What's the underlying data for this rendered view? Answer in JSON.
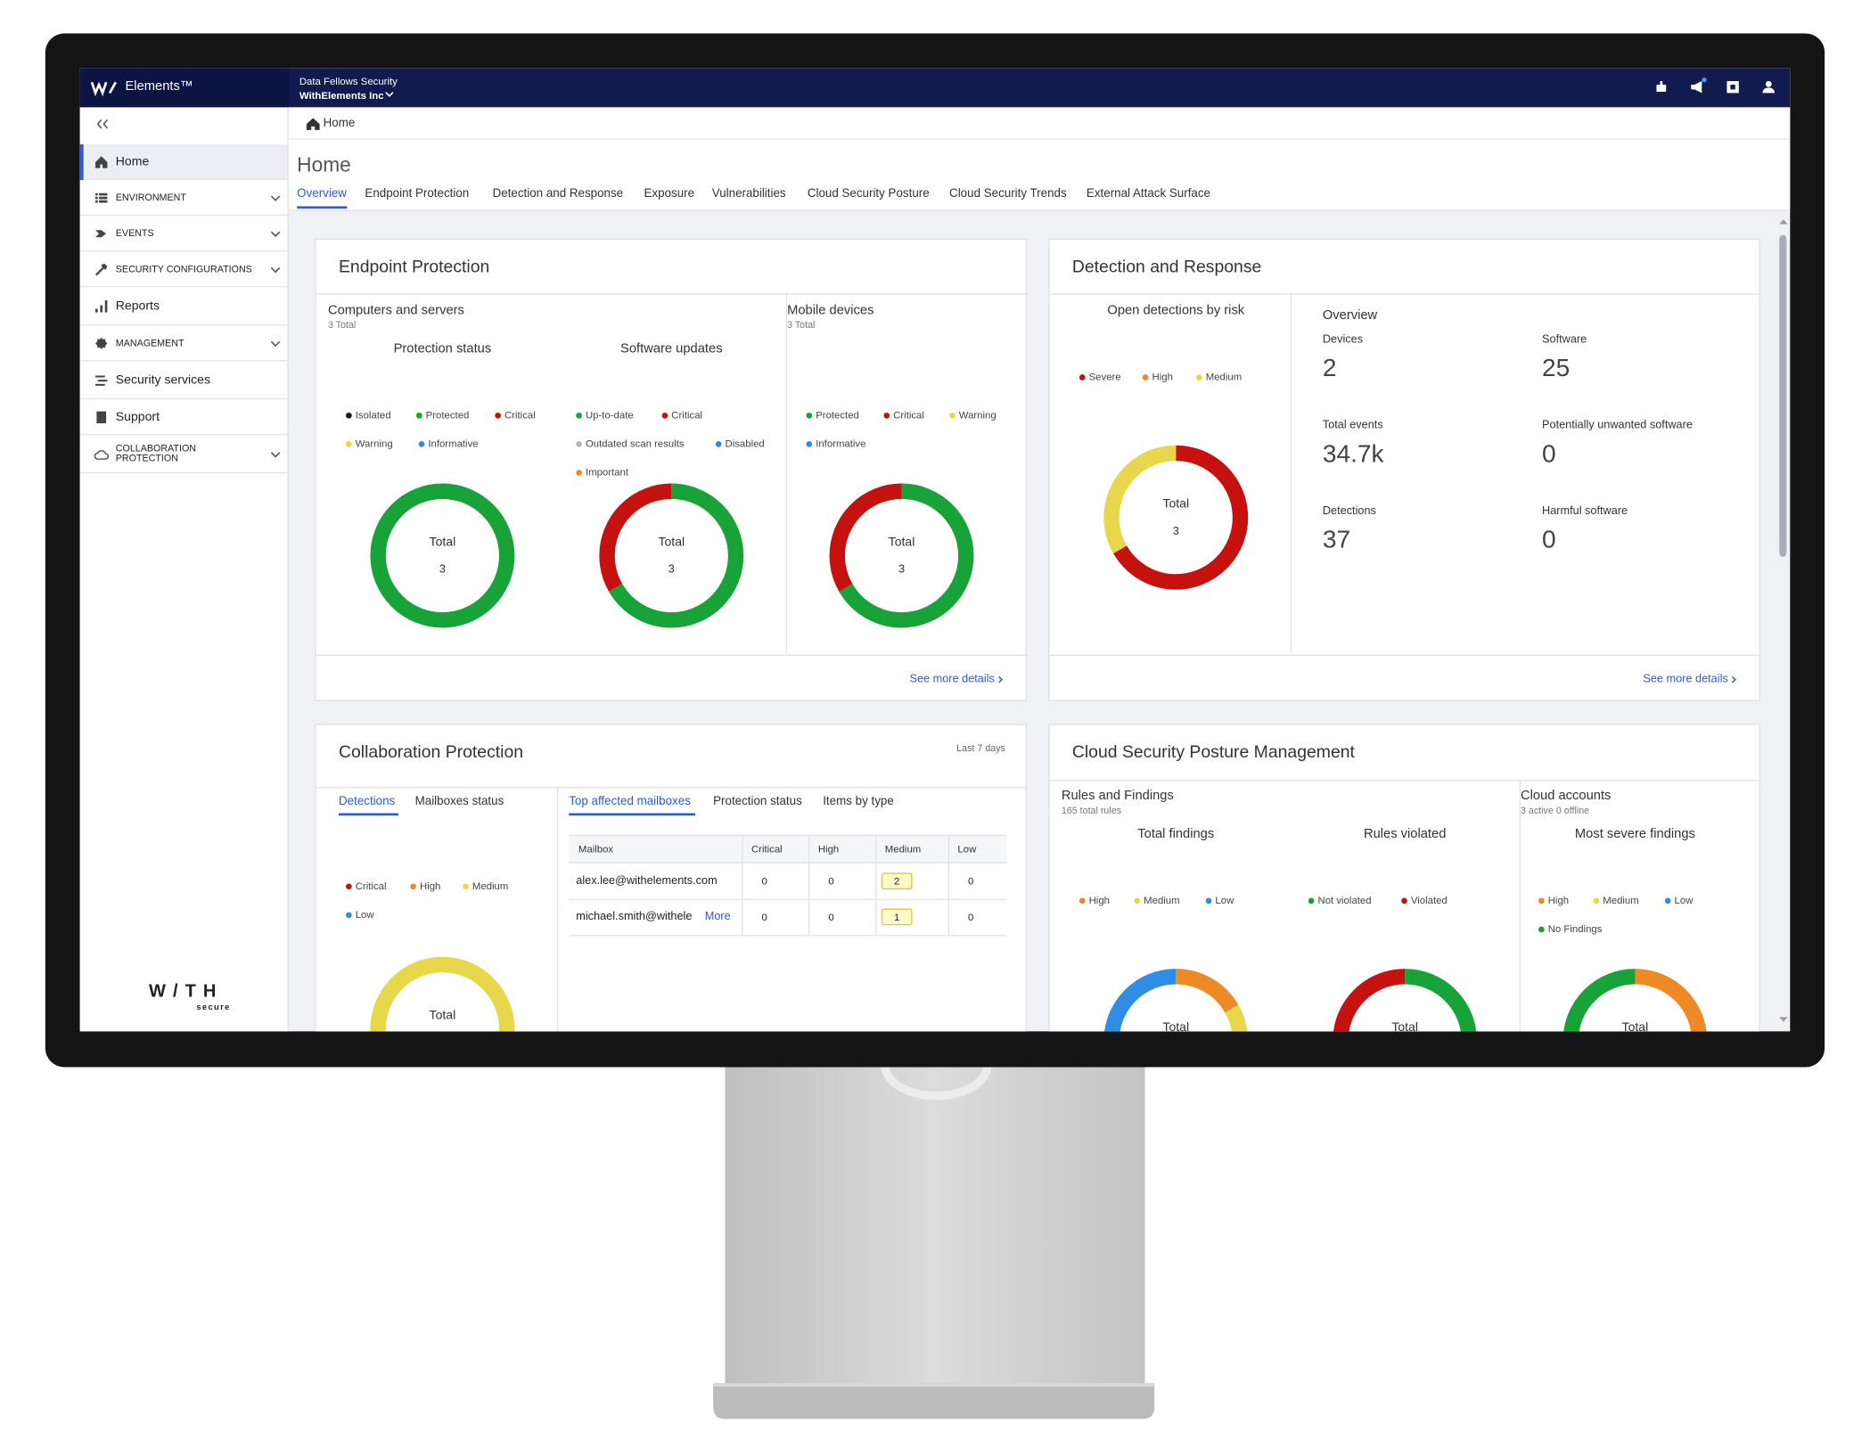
{
  "topbar": {
    "brand": "Elements™",
    "org": "Data Fellows Security",
    "company": "WithElements Inc"
  },
  "sidebar": {
    "items": [
      "Home",
      "ENVIRONMENT",
      "EVENTS",
      "SECURITY CONFIGURATIONS",
      "Reports",
      "MANAGEMENT",
      "Security services",
      "Support",
      "COLLABORATION PROTECTION"
    ],
    "logo": "W/TH",
    "logo_tagline": "secure"
  },
  "breadcrumb": "Home",
  "page_title": "Home",
  "tabs": [
    "Overview",
    "Endpoint Protection",
    "Detection and Response",
    "Exposure",
    "Vulnerabilities",
    "Cloud Security Posture",
    "Cloud Security Trends",
    "External Attack Surface"
  ],
  "endpoint_protection": {
    "title": "Endpoint Protection",
    "computers": {
      "title": "Computers and servers",
      "count": "3 Total"
    },
    "mobile": {
      "title": "Mobile devices",
      "count": "3 Total"
    },
    "charts": [
      {
        "title": "Protection status",
        "center_label": "Total",
        "center_value": 3,
        "segments": [
          {
            "name": "Isolated",
            "color": "#1b1b1b",
            "value": 0
          },
          {
            "name": "Protected",
            "color": "#17a337",
            "value": 3
          },
          {
            "name": "Critical",
            "color": "#c5120f",
            "value": 0
          },
          {
            "name": "Warning",
            "color": "#e6d84a",
            "value": 0
          },
          {
            "name": "Informative",
            "color": "#2f8de4",
            "value": 0
          }
        ]
      },
      {
        "title": "Software updates",
        "center_label": "Total",
        "center_value": 3,
        "segments": [
          {
            "name": "Up-to-date",
            "color": "#17a337",
            "value": 2
          },
          {
            "name": "Critical",
            "color": "#c5120f",
            "value": 1
          },
          {
            "name": "Outdated scan results",
            "color": "#b8b8b8",
            "value": 0
          },
          {
            "name": "Disabled",
            "color": "#2f8de4",
            "value": 0
          },
          {
            "name": "Important",
            "color": "#ee8a25",
            "value": 0
          }
        ]
      },
      {
        "center_label": "Total",
        "center_value": 3,
        "segments": [
          {
            "name": "Protected",
            "color": "#17a337",
            "value": 2
          },
          {
            "name": "Critical",
            "color": "#c5120f",
            "value": 1
          },
          {
            "name": "Warning",
            "color": "#e6d84a",
            "value": 0
          },
          {
            "name": "Informative",
            "color": "#2f8de4",
            "value": 0
          }
        ]
      }
    ],
    "link": "See more details"
  },
  "detection_response": {
    "title": "Detection and Response",
    "chart": {
      "title": "Open detections by risk",
      "center_label": "Total",
      "center_value": 3,
      "segments": [
        {
          "name": "Severe",
          "color": "#c5120f",
          "value": 2
        },
        {
          "name": "High",
          "color": "#ee8a25",
          "value": 0
        },
        {
          "name": "Medium",
          "color": "#e6d84a",
          "value": 1
        }
      ]
    },
    "overview": {
      "title": "Overview",
      "stats": [
        {
          "label": "Devices",
          "value": 2
        },
        {
          "label": "Software",
          "value": 25
        },
        {
          "label": "Total events",
          "value": "34.7k"
        },
        {
          "label": "Potentially unwanted software",
          "value": 0
        },
        {
          "label": "Detections",
          "value": 37
        },
        {
          "label": "Harmful software",
          "value": 0
        }
      ]
    },
    "link": "See more details"
  },
  "collaboration_protection": {
    "title": "Collaboration Protection",
    "period": "Last 7 days",
    "tabs": [
      "Detections",
      "Mailboxes status"
    ],
    "chart": {
      "center_label": "Total",
      "segments": [
        {
          "name": "Critical",
          "color": "#c5120f",
          "value": 0
        },
        {
          "name": "High",
          "color": "#ee8a25",
          "value": 0
        },
        {
          "name": "Medium",
          "color": "#e6d84a",
          "value": 3
        },
        {
          "name": "Low",
          "color": "#2f8de4",
          "value": 0
        }
      ]
    },
    "table_tabs": [
      "Top affected mailboxes",
      "Protection status",
      "Items by type"
    ],
    "table": {
      "columns": [
        "Mailbox",
        "Critical",
        "High",
        "Medium",
        "Low"
      ],
      "rows": [
        [
          "alex.lee@withelements.com",
          0,
          0,
          2,
          0
        ],
        [
          "michael.smith@withele",
          0,
          0,
          1,
          0
        ]
      ]
    },
    "more": "More"
  },
  "cloud_security": {
    "title": "Cloud Security Posture Management",
    "rules": {
      "title": "Rules and Findings",
      "count": "165 total rules"
    },
    "accounts": {
      "title": "Cloud accounts",
      "count": "3 active 0 offline"
    },
    "charts": [
      {
        "title": "Total findings",
        "center_label": "Total",
        "segments": [
          {
            "name": "High",
            "color": "#ee8a25",
            "value": 2
          },
          {
            "name": "Medium",
            "color": "#e6d84a",
            "value": 3
          },
          {
            "name": "Low",
            "color": "#2f8de4",
            "value": 7
          }
        ]
      },
      {
        "title": "Rules violated",
        "center_label": "Total",
        "segments": [
          {
            "name": "Not violated",
            "color": "#17a337",
            "value": 7
          },
          {
            "name": "Violated",
            "color": "#c5120f",
            "value": 5
          }
        ]
      },
      {
        "title": "Most severe findings",
        "center_label": "Total",
        "segments": [
          {
            "name": "High",
            "color": "#ee8a25",
            "value": 1
          },
          {
            "name": "Medium",
            "color": "#e6d84a",
            "value": 0
          },
          {
            "name": "Low",
            "color": "#2f8de4",
            "value": 0
          },
          {
            "name": "No Findings",
            "color": "#17a337",
            "value": 1
          }
        ]
      }
    ]
  }
}
